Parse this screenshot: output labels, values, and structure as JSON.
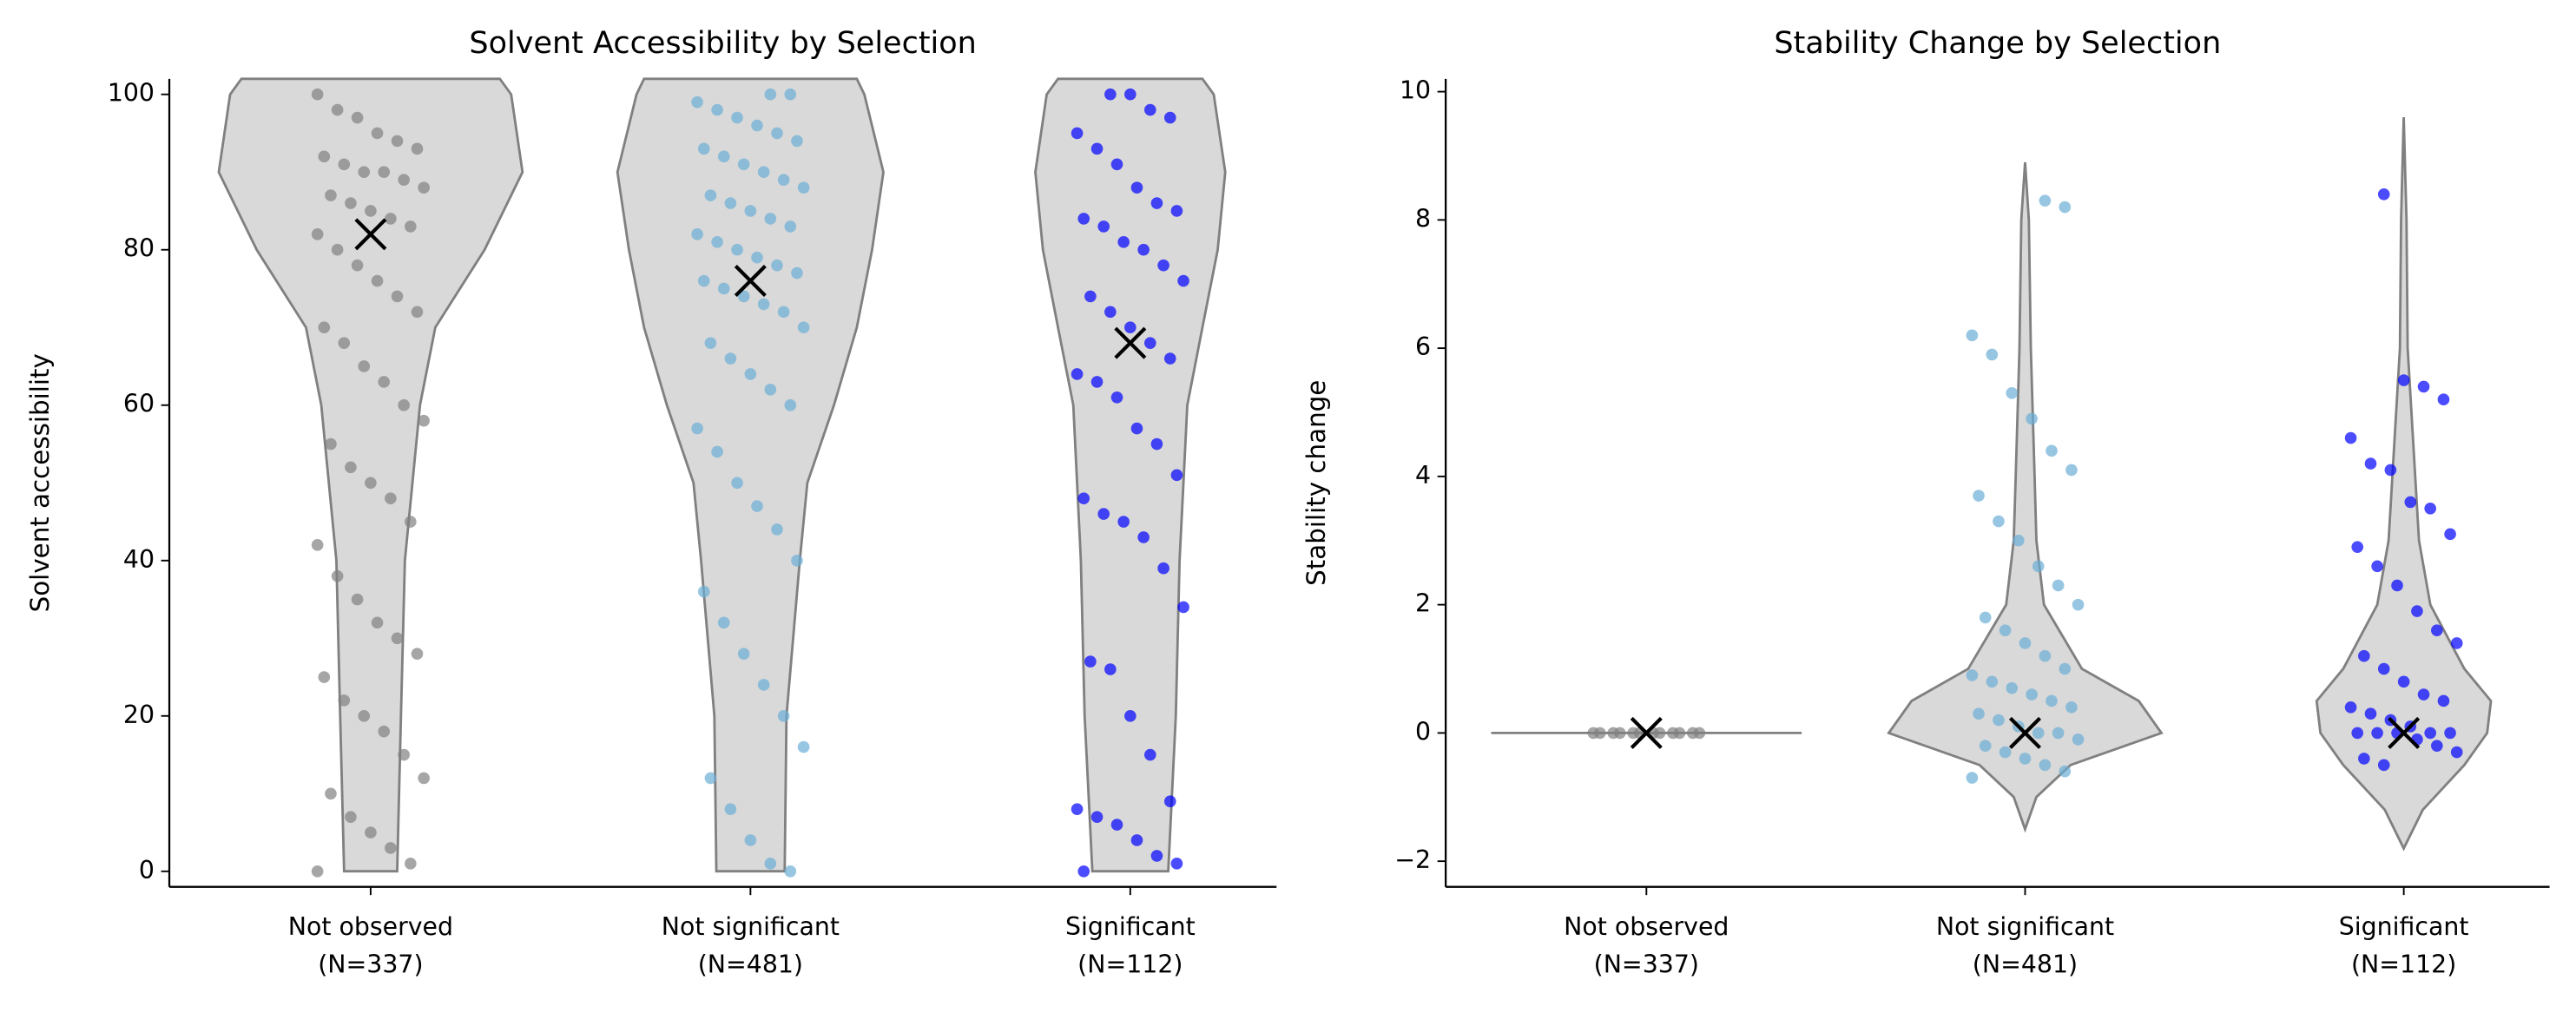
{
  "chart_data": [
    {
      "type": "violin",
      "title": "Solvent Accessibility by Selection",
      "ylabel": "Solvent accessibility",
      "categories": [
        "Not observed",
        "Not significant",
        "Significant"
      ],
      "n": [
        {
          "value": 337,
          "label": "(N=337)"
        },
        {
          "value": 481,
          "label": "(N=481)"
        },
        {
          "value": 112,
          "label": "(N=112)"
        }
      ],
      "ylim": [
        -2,
        102
      ],
      "yticks": [
        0,
        20,
        40,
        60,
        80,
        100
      ],
      "groups": [
        {
          "color": "#808080",
          "mean": 82,
          "violin": {
            "y": [
              0,
              20,
              40,
              60,
              70,
              80,
              90,
              100,
              102
            ],
            "half_width": [
              0.07,
              0.08,
              0.09,
              0.13,
              0.17,
              0.3,
              0.4,
              0.37,
              0.34
            ]
          },
          "points": [
            100,
            98,
            97,
            95,
            94,
            93,
            92,
            91,
            90,
            90,
            89,
            88,
            87,
            86,
            85,
            84,
            83,
            82,
            80,
            78,
            76,
            74,
            72,
            70,
            68,
            65,
            63,
            60,
            58,
            55,
            52,
            50,
            48,
            45,
            42,
            38,
            35,
            32,
            30,
            28,
            25,
            22,
            20,
            18,
            15,
            12,
            10,
            7,
            5,
            3,
            1,
            0
          ]
        },
        {
          "color": "#6baed6",
          "mean": 76,
          "violin": {
            "y": [
              0,
              20,
              40,
              50,
              60,
              70,
              80,
              90,
              100,
              102
            ],
            "half_width": [
              0.09,
              0.095,
              0.13,
              0.15,
              0.22,
              0.28,
              0.32,
              0.35,
              0.3,
              0.28
            ]
          },
          "points": [
            100,
            100,
            99,
            98,
            97,
            96,
            95,
            94,
            93,
            92,
            91,
            90,
            89,
            88,
            87,
            86,
            85,
            84,
            83,
            82,
            81,
            80,
            79,
            78,
            77,
            76,
            75,
            74,
            73,
            72,
            70,
            68,
            66,
            64,
            62,
            60,
            57,
            54,
            50,
            47,
            44,
            40,
            36,
            32,
            28,
            24,
            20,
            16,
            12,
            8,
            4,
            1,
            0
          ]
        },
        {
          "color": "#0000ff",
          "mean": 68,
          "violin": {
            "y": [
              0,
              20,
              40,
              60,
              70,
              80,
              90,
              100,
              102
            ],
            "half_width": [
              0.1,
              0.12,
              0.13,
              0.15,
              0.19,
              0.23,
              0.25,
              0.22,
              0.19
            ]
          },
          "points": [
            100,
            100,
            98,
            97,
            95,
            93,
            91,
            88,
            86,
            85,
            84,
            83,
            81,
            80,
            78,
            76,
            74,
            72,
            70,
            68,
            66,
            64,
            63,
            61,
            57,
            55,
            51,
            48,
            46,
            45,
            43,
            39,
            34,
            27,
            26,
            20,
            15,
            9,
            8,
            7,
            6,
            4,
            2,
            1,
            0
          ]
        }
      ]
    },
    {
      "type": "violin",
      "title": "Stability Change by Selection",
      "ylabel": "Stability change",
      "categories": [
        "Not observed",
        "Not significant",
        "Significant"
      ],
      "n": [
        {
          "value": 337,
          "label": "(N=337)"
        },
        {
          "value": 481,
          "label": "(N=481)"
        },
        {
          "value": 112,
          "label": "(N=112)"
        }
      ],
      "ylim": [
        -2.4,
        10.2
      ],
      "yticks": [
        {
          "value": -2,
          "label": "−2"
        },
        0,
        2,
        4,
        6,
        8,
        10
      ],
      "groups": [
        {
          "color": "#808080",
          "mean": 0,
          "violin": {
            "y": [
              0
            ],
            "half_width": [
              0.41
            ]
          },
          "points": [
            0,
            0,
            0,
            0,
            0,
            0,
            0,
            0,
            0,
            0,
            0,
            0
          ]
        },
        {
          "color": "#6baed6",
          "mean": 0,
          "violin": {
            "y": [
              -1.5,
              -1,
              -0.5,
              0,
              0.5,
              1,
              2,
              3,
              4,
              6,
              8,
              8.9
            ],
            "half_width": [
              0,
              0.03,
              0.12,
              0.36,
              0.3,
              0.15,
              0.05,
              0.03,
              0.025,
              0.015,
              0.01,
              0
            ]
          },
          "points": [
            8.3,
            8.2,
            6.2,
            5.9,
            5.3,
            4.9,
            4.4,
            4.1,
            3.7,
            3.3,
            3.0,
            2.6,
            2.3,
            2.0,
            1.8,
            1.6,
            1.4,
            1.2,
            1.0,
            0.9,
            0.8,
            0.7,
            0.6,
            0.5,
            0.4,
            0.3,
            0.2,
            0.1,
            0,
            0,
            -0.1,
            -0.2,
            -0.3,
            -0.4,
            -0.5,
            -0.6,
            -0.7
          ]
        },
        {
          "color": "#0000ff",
          "mean": 0,
          "violin": {
            "y": [
              -1.8,
              -1.2,
              -0.5,
              0,
              0.5,
              1,
              2,
              3,
              4,
              5,
              6,
              8,
              9.6
            ],
            "half_width": [
              0,
              0.05,
              0.16,
              0.22,
              0.23,
              0.16,
              0.07,
              0.04,
              0.03,
              0.02,
              0.01,
              0.007,
              0
            ]
          },
          "points": [
            8.4,
            5.5,
            5.4,
            5.2,
            4.6,
            4.2,
            4.1,
            3.6,
            3.5,
            3.1,
            2.9,
            2.6,
            2.3,
            1.9,
            1.6,
            1.4,
            1.2,
            1.0,
            0.8,
            0.6,
            0.5,
            0.4,
            0.3,
            0.2,
            0.1,
            0,
            0,
            0,
            0,
            0,
            -0.1,
            -0.2,
            -0.3,
            -0.4,
            -0.5
          ]
        }
      ]
    }
  ]
}
